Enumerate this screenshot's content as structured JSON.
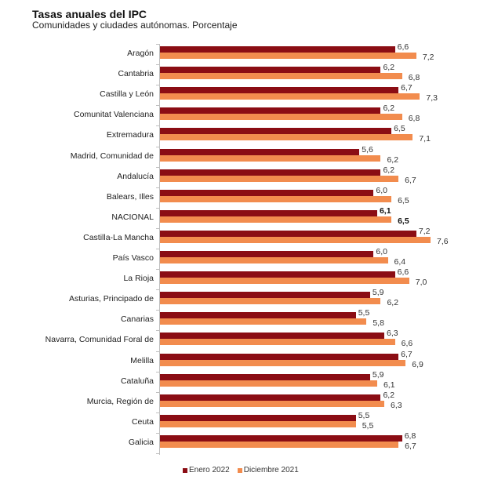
{
  "header": {
    "title": "Tasas anuales del IPC",
    "subtitle": "Comunidades y ciudades autónomas. Porcentaje"
  },
  "legend": [
    {
      "label": "Enero 2022",
      "color": "#8b0d14"
    },
    {
      "label": "Diciembre 2021",
      "color": "#f28c4e"
    }
  ],
  "chart_data": {
    "type": "bar",
    "orientation": "horizontal",
    "title": "Tasas anuales del IPC",
    "subtitle": "Comunidades y ciudades autónomas. Porcentaje",
    "xlabel": "",
    "ylabel": "",
    "grid": false,
    "legend_position": "bottom",
    "categories": [
      "Aragón",
      "Cantabria",
      "Castilla y León",
      "Comunitat Valenciana",
      "Extremadura",
      "Madrid, Comunidad de",
      "Andalucía",
      "Balears, Illes",
      "NACIONAL",
      "Castilla-La Mancha",
      "País Vasco",
      "La Rioja",
      "Asturias, Principado de",
      "Canarias",
      "Navarra, Comunidad Foral de",
      "Melilla",
      "Cataluña",
      "Murcia, Región de",
      "Ceuta",
      "Galicia"
    ],
    "series": [
      {
        "name": "Enero 2022",
        "color": "#8b0d14",
        "values": [
          6.6,
          6.2,
          6.7,
          6.2,
          6.5,
          5.6,
          6.2,
          6.0,
          6.1,
          7.2,
          6.0,
          6.6,
          5.9,
          5.5,
          6.3,
          6.7,
          5.9,
          6.2,
          5.5,
          6.8
        ]
      },
      {
        "name": "Diciembre 2021",
        "color": "#f28c4e",
        "values": [
          7.2,
          6.8,
          7.3,
          6.8,
          7.1,
          6.2,
          6.7,
          6.5,
          6.5,
          7.6,
          6.4,
          7.0,
          6.2,
          5.8,
          6.6,
          6.9,
          6.1,
          6.3,
          5.5,
          6.7
        ]
      }
    ],
    "labels": {
      "Enero 2022": [
        "6,6",
        "6,2",
        "6,7",
        "6,2",
        "6,5",
        "5,6",
        "6,2",
        "6,0",
        "6,1",
        "7,2",
        "6,0",
        "6,6",
        "5,9",
        "5,5",
        "6,3",
        "6,7",
        "5,9",
        "6,2",
        "5,5",
        "6,8"
      ],
      "Diciembre 2021": [
        "7,2",
        "6,8",
        "7,3",
        "6,8",
        "7,1",
        "6,2",
        "6,7",
        "6,5",
        "6,5",
        "7,6",
        "6,4",
        "7,0",
        "6,2",
        "5,8",
        "6,6",
        "6,9",
        "6,1",
        "6,3",
        "5,5",
        "6,7"
      ]
    },
    "highlighted_category": "NACIONAL"
  }
}
